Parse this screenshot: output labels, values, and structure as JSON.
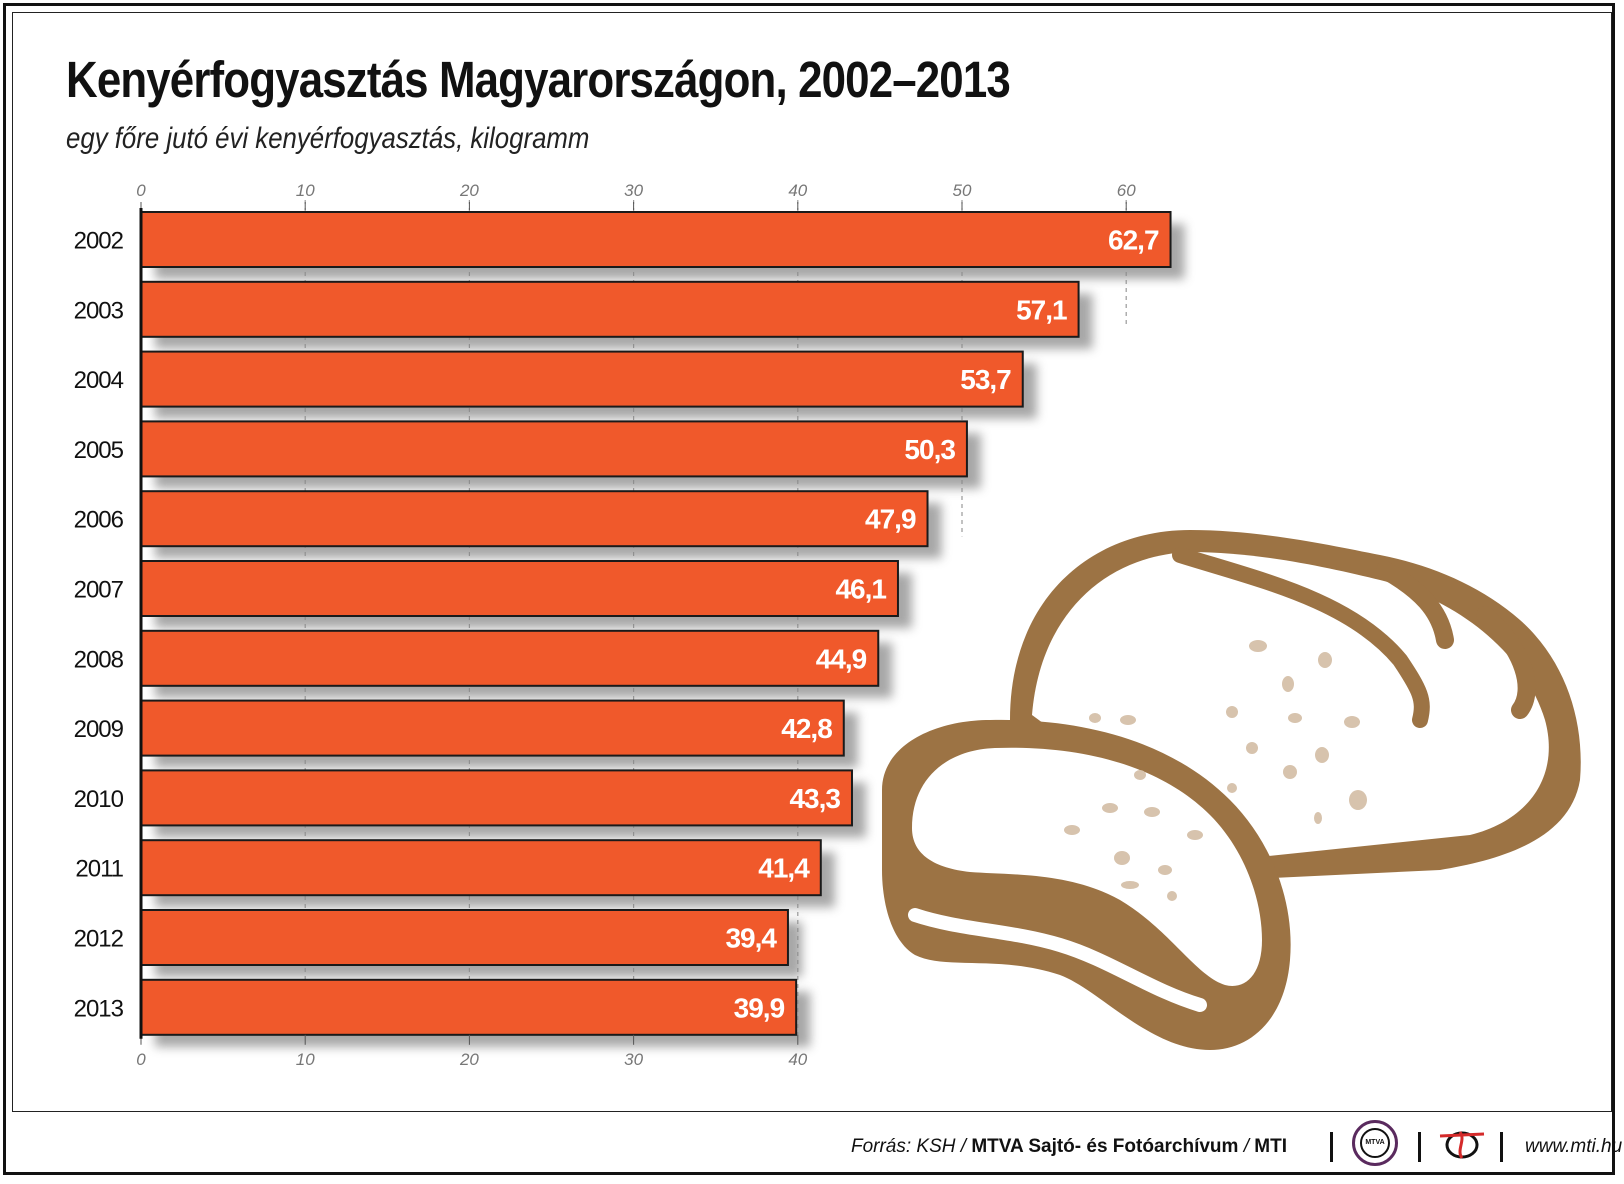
{
  "chart_data": {
    "type": "bar",
    "orientation": "horizontal",
    "title": "Kenyérfogyasztás Magyarországon, 2002–2013",
    "subtitle": "egy főre jutó évi kenyérfogyasztás, kilogramm",
    "categories": [
      "2002",
      "2003",
      "2004",
      "2005",
      "2006",
      "2007",
      "2008",
      "2009",
      "2010",
      "2011",
      "2012",
      "2013"
    ],
    "values": [
      62.7,
      57.1,
      53.7,
      50.3,
      47.9,
      46.1,
      44.9,
      42.8,
      43.3,
      41.4,
      39.4,
      39.9
    ],
    "value_labels": [
      "62,7",
      "57,1",
      "53,7",
      "50,3",
      "47,9",
      "46,1",
      "44,9",
      "42,8",
      "43,3",
      "41,4",
      "39,4",
      "39,9"
    ],
    "top_axis_ticks": [
      "0",
      "10",
      "20",
      "30",
      "40",
      "50",
      "60"
    ],
    "bottom_axis_ticks": [
      "0",
      "10",
      "20",
      "30",
      "40"
    ],
    "xlim": [
      0,
      65
    ],
    "grid": "dashed vertical",
    "colors": {
      "bar": "#f0592b",
      "bar_border": "#1a1a1a",
      "shadow": "#8a8a8a",
      "bread_crust": "#9c7344",
      "bread_crumb": "#d7c3ad"
    }
  },
  "footer": {
    "source_label": "Forrás: KSH / ",
    "archive": "MTVA Sajtó- és Fotóarchívum",
    "slash": " / ",
    "agency": "MTI",
    "mtva_logo_text": "MTVA",
    "url": "www.mti.hu"
  },
  "icons": {
    "illustration": "bread-loaf-icon",
    "mtva": "mtva-logo-icon",
    "mti": "mti-logo-icon"
  }
}
